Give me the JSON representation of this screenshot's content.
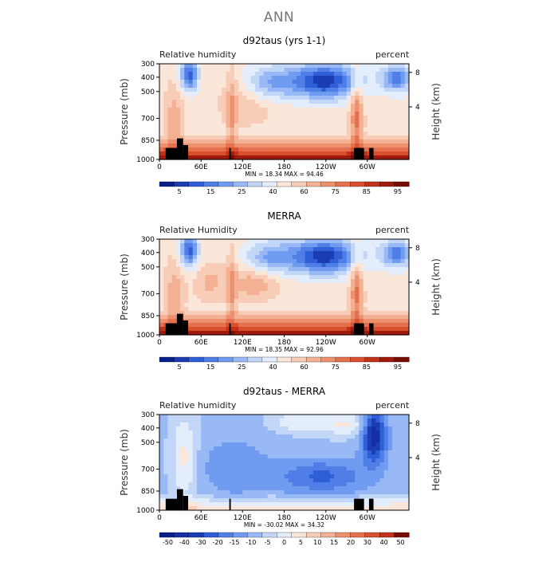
{
  "page_title": "ANN",
  "chart_data": [
    {
      "type": "heatmap",
      "title": "d92taus (yrs 1-1)",
      "left_label": "Relative humidity",
      "right_label": "percent",
      "ylabel": "Pressure (mb)",
      "y2label": "Height (km)",
      "y_ticks": [
        "300",
        "400",
        "500",
        "700",
        "850",
        "1000"
      ],
      "y2_ticks": [
        "8",
        "4"
      ],
      "x_ticks": [
        "0",
        "60E",
        "120E",
        "180",
        "120W",
        "60W"
      ],
      "min_max": "MIN =  18.34   MAX =  94.46",
      "colorbar_labels": [
        "5",
        "15",
        "25",
        "40",
        "60",
        "75",
        "85",
        "95"
      ],
      "colorbar_colors": [
        "#0a1e8c",
        "#1c3cb4",
        "#2f5fd6",
        "#4f7fe6",
        "#6f9bf0",
        "#98b9f5",
        "#c2d6f8",
        "#e4edfb",
        "#fbe6da",
        "#f8cdb8",
        "#f3b093",
        "#ec906e",
        "#e4704d",
        "#d8502f",
        "#c2321a",
        "#a01a0c",
        "#7a0c06"
      ],
      "min": 18.34,
      "max": 94.46
    },
    {
      "type": "heatmap",
      "title": "MERRA",
      "left_label": "Relative Humidity",
      "right_label": "percent",
      "ylabel": "Pressure (mb)",
      "y2label": "Height (km)",
      "y_ticks": [
        "300",
        "400",
        "500",
        "700",
        "850",
        "1000"
      ],
      "y2_ticks": [
        "8",
        "4"
      ],
      "x_ticks": [
        "0",
        "60E",
        "120E",
        "180",
        "120W",
        "60W"
      ],
      "min_max": "MIN =  18.35   MAX =  92.96",
      "colorbar_labels": [
        "5",
        "15",
        "25",
        "40",
        "60",
        "75",
        "85",
        "95"
      ],
      "colorbar_colors": [
        "#0a1e8c",
        "#1c3cb4",
        "#2f5fd6",
        "#4f7fe6",
        "#6f9bf0",
        "#98b9f5",
        "#c2d6f8",
        "#e4edfb",
        "#fbe6da",
        "#f8cdb8",
        "#f3b093",
        "#ec906e",
        "#e4704d",
        "#d8502f",
        "#c2321a",
        "#a01a0c",
        "#7a0c06"
      ],
      "min": 18.35,
      "max": 92.96
    },
    {
      "type": "heatmap",
      "title": "d92taus - MERRA",
      "left_label": "Relative humidity",
      "right_label": "percent",
      "ylabel": "Pressure (mb)",
      "y2label": "Height (km)",
      "y_ticks": [
        "300",
        "400",
        "500",
        "700",
        "850",
        "1000"
      ],
      "y2_ticks": [
        "8",
        "4"
      ],
      "x_ticks": [
        "0",
        "60E",
        "120E",
        "180",
        "120W",
        "60W"
      ],
      "min_max": "MIN = -30.02   MAX =  34.32",
      "colorbar_labels": [
        "-50",
        "-40",
        "-30",
        "-20",
        "-15",
        "-10",
        "-5",
        "0",
        "5",
        "10",
        "15",
        "20",
        "30",
        "40",
        "50"
      ],
      "colorbar_colors": [
        "#0a1e8c",
        "#142fa6",
        "#1c3cb4",
        "#2f5fd6",
        "#4f7fe6",
        "#6f9bf0",
        "#98b9f5",
        "#c2d6f8",
        "#e4edfb",
        "#fbe6da",
        "#f8cdb8",
        "#f3b093",
        "#ec906e",
        "#e4704d",
        "#d8502f",
        "#c2321a",
        "#7a0c06"
      ],
      "min": -30.02,
      "max": 34.32
    }
  ]
}
